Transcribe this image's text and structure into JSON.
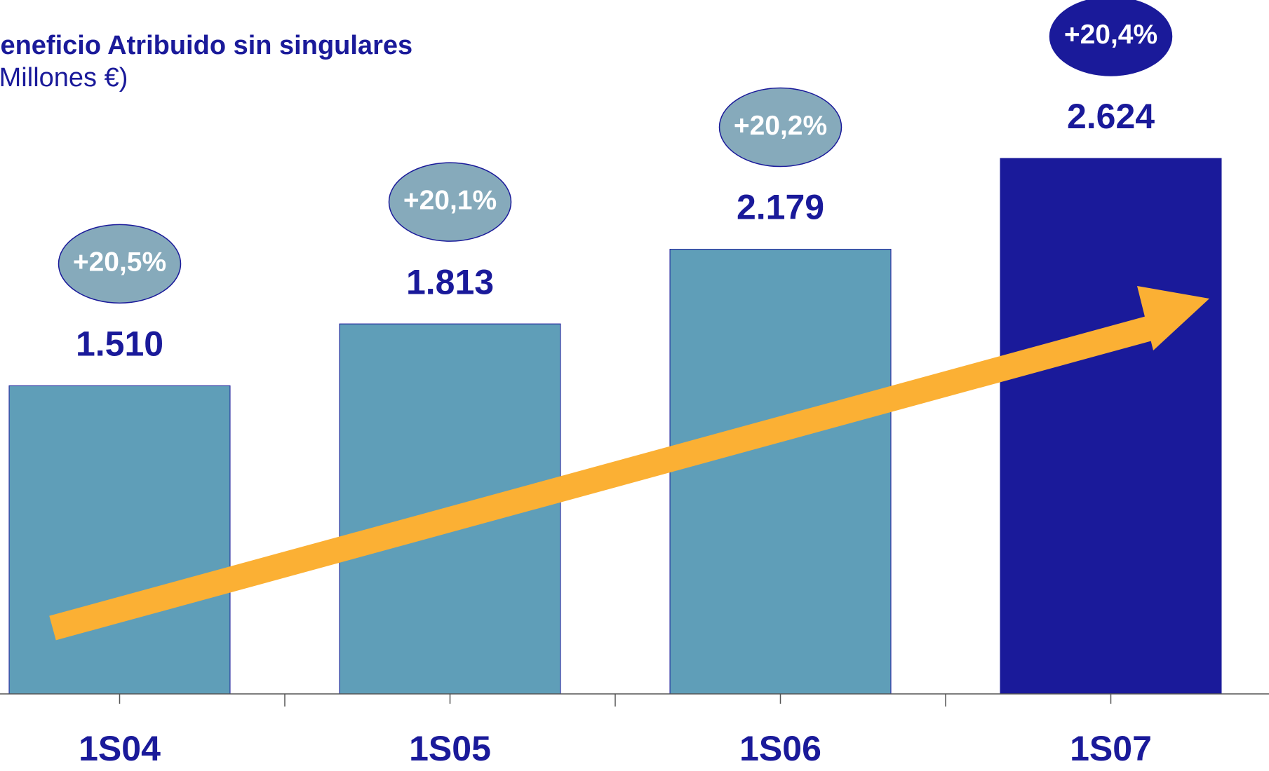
{
  "chart_data": {
    "type": "bar",
    "title": "Beneficio Atribuido sin singulares",
    "subtitle": "(Millones €)",
    "categories": [
      "1S04",
      "1S05",
      "1S06",
      "1S07"
    ],
    "values": [
      1510,
      1813,
      2179,
      2624
    ],
    "value_labels": [
      "1.510",
      "1.813",
      "2.179",
      "2.624"
    ],
    "colors": [
      "#5f9eb8",
      "#5f9eb8",
      "#5f9eb8",
      "#1a1a9a"
    ],
    "growth_labels": [
      "+20,5%",
      "+20,1%",
      "+20,2%",
      "+20,4%"
    ],
    "ylim": [
      0,
      3400
    ]
  }
}
